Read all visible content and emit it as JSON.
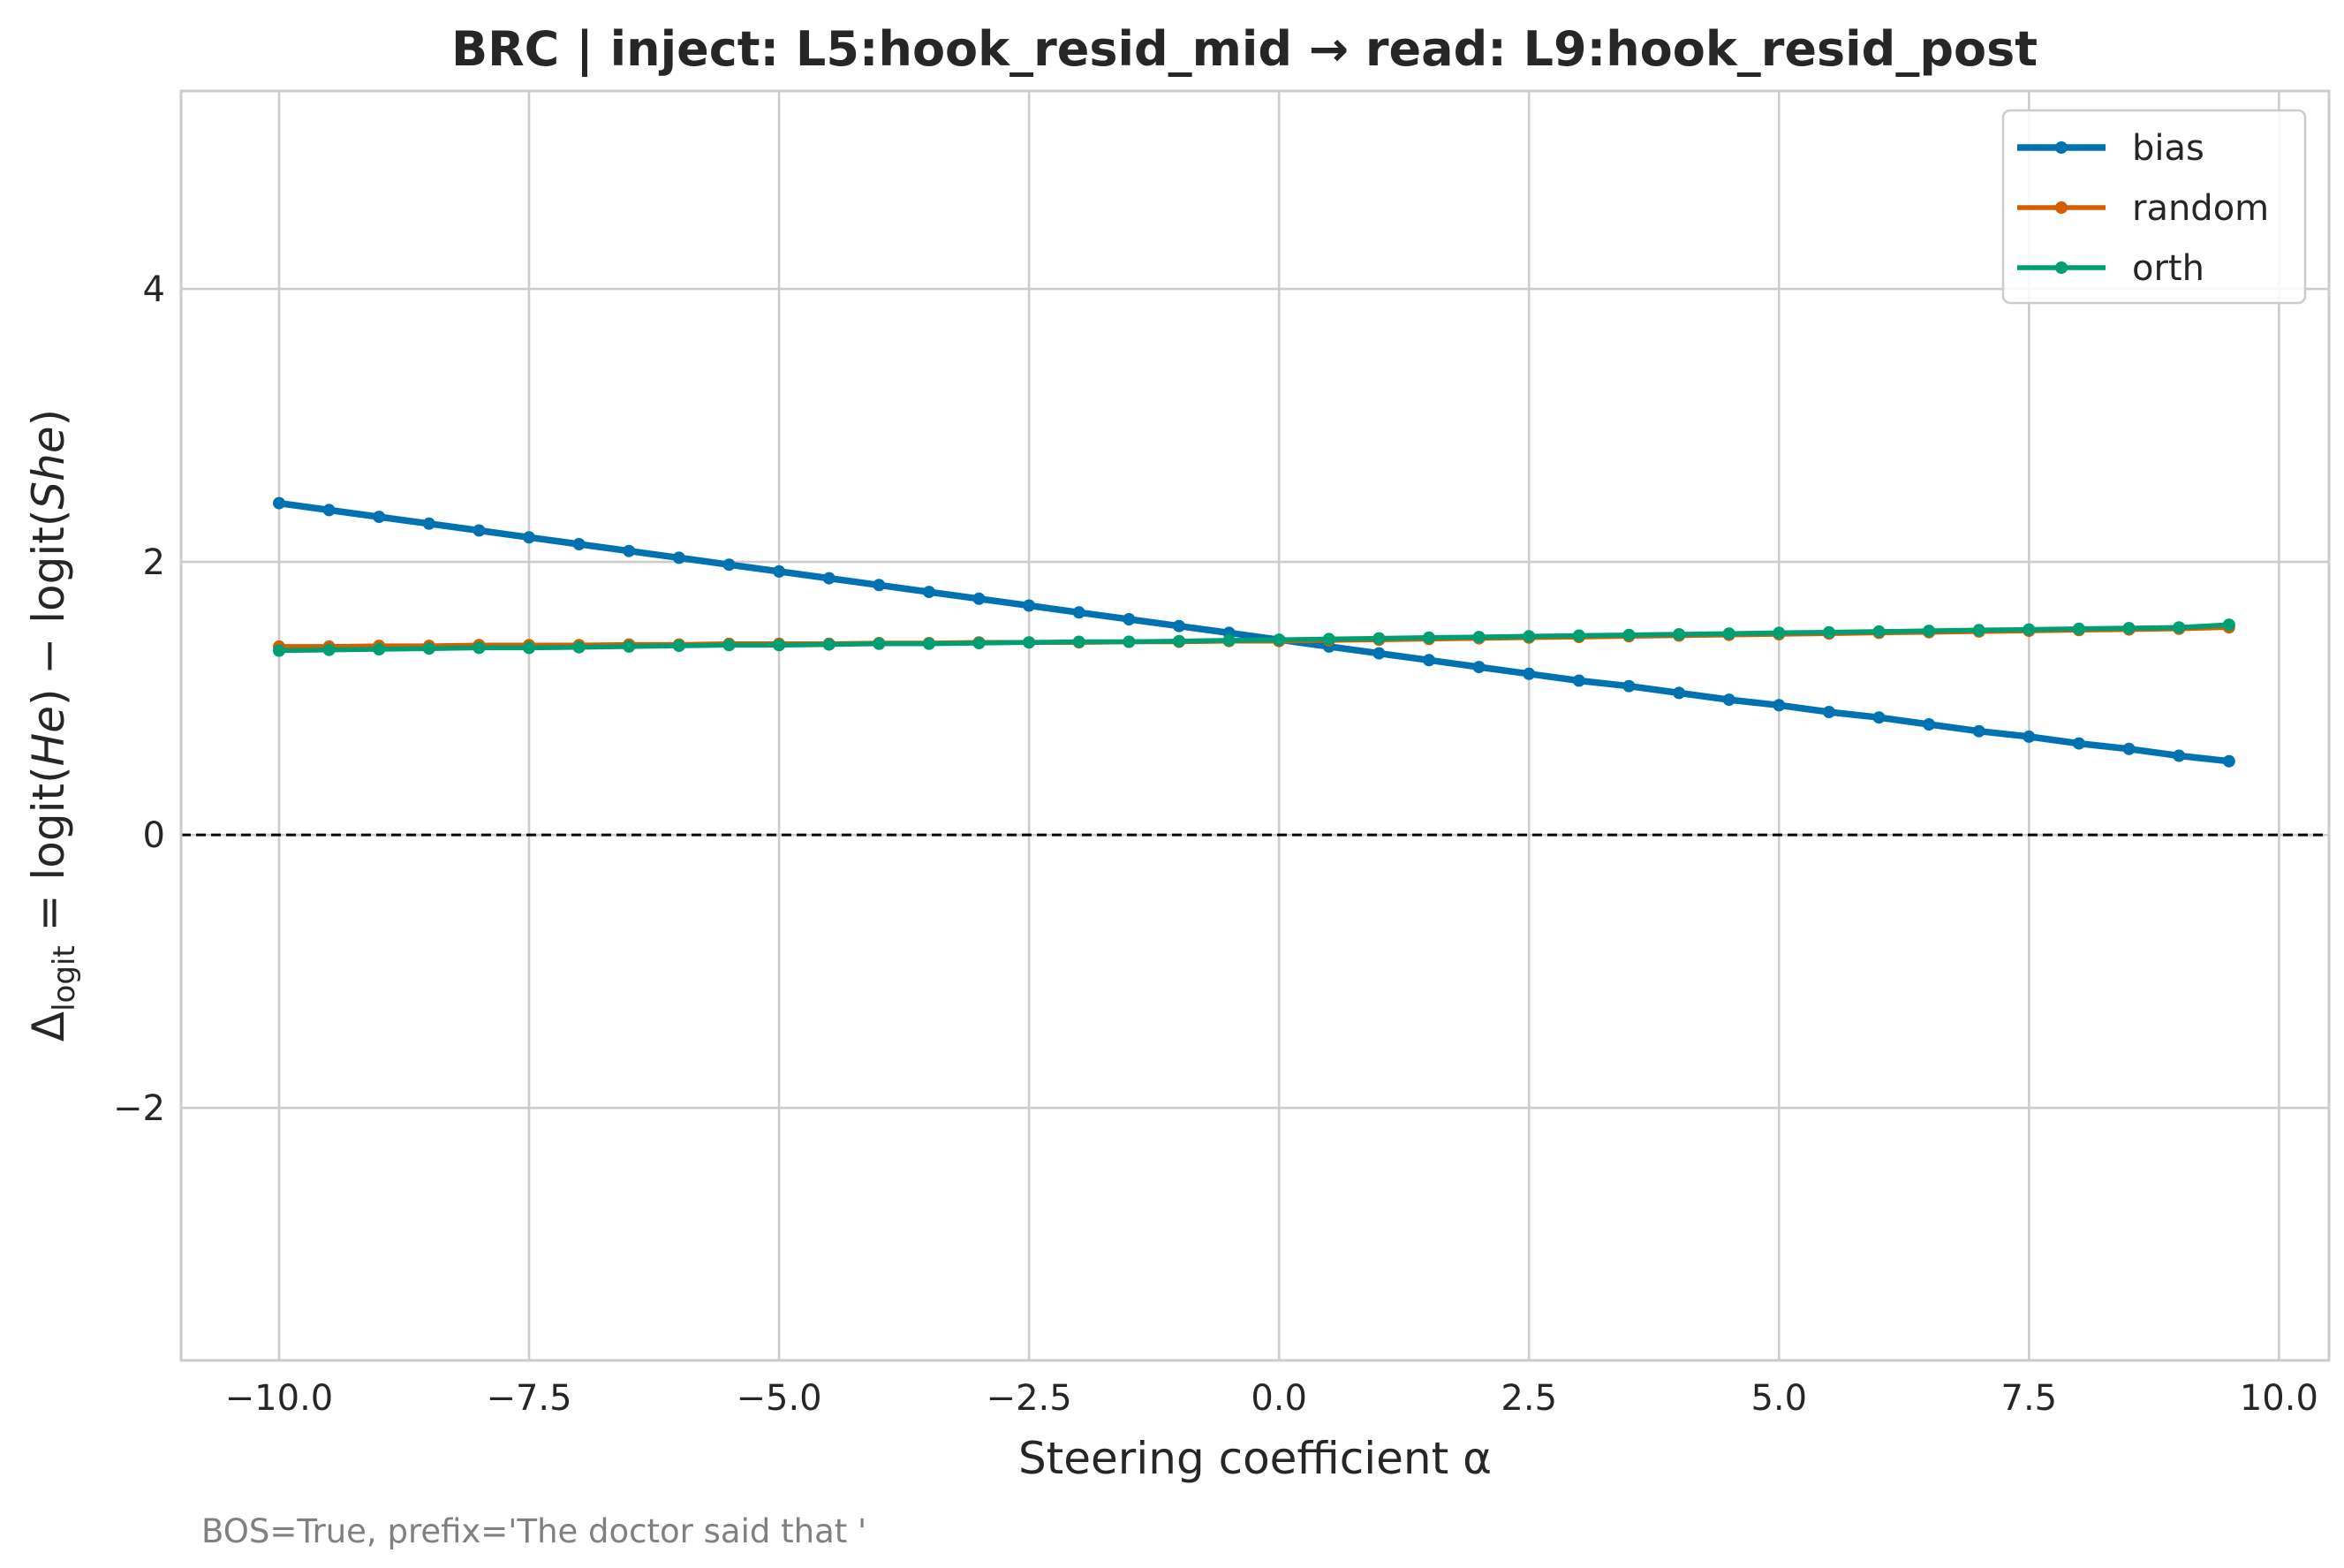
{
  "chart_data": {
    "type": "line",
    "title": "BRC | inject: L5:hook_resid_mid → read: L9:hook_resid_post",
    "xlabel": "Steering coefficient α",
    "ylabel": "Δlogit = logit(He) − logit(She)",
    "ylabel_parts": {
      "delta": "Δ",
      "sub": "logit",
      "pre": " = logit(",
      "he": "He",
      "mid": ") − logit(",
      "she": "She",
      "post": ")"
    },
    "footnote": "BOS=True, prefix='The doctor said that '",
    "xlim": [
      -10.98,
      10.5
    ],
    "ylim": [
      -3.85,
      5.45
    ],
    "x_ticks": [
      -10.0,
      -7.5,
      -5.0,
      -2.5,
      0.0,
      2.5,
      5.0,
      7.5,
      10.0
    ],
    "x_tick_labels": [
      "−10.0",
      "−7.5",
      "−5.0",
      "−2.5",
      "0.0",
      "2.5",
      "5.0",
      "7.5",
      "10.0"
    ],
    "y_ticks": [
      -2,
      0,
      2,
      4
    ],
    "y_tick_labels": [
      "−2",
      "0",
      "2",
      "4"
    ],
    "reference_line": {
      "y": 0,
      "style": "dashed",
      "color": "#000000"
    },
    "grid": true,
    "legend_position": "top-right",
    "x_start": -10.0,
    "x_step": 0.5,
    "series": [
      {
        "name": "bias",
        "color": "#0072b2",
        "values": [
          2.43,
          2.38,
          2.33,
          2.28,
          2.23,
          2.18,
          2.13,
          2.08,
          2.03,
          1.98,
          1.93,
          1.88,
          1.83,
          1.78,
          1.73,
          1.68,
          1.63,
          1.58,
          1.53,
          1.48,
          1.43,
          1.38,
          1.33,
          1.28,
          1.23,
          1.18,
          1.13,
          1.09,
          1.04,
          0.99,
          0.95,
          0.9,
          0.86,
          0.81,
          0.76,
          0.72,
          0.67,
          0.63,
          0.58,
          0.54
        ]
      },
      {
        "name": "random",
        "color": "#d55e00",
        "values": [
          1.38,
          1.38,
          1.385,
          1.385,
          1.39,
          1.39,
          1.39,
          1.395,
          1.395,
          1.4,
          1.4,
          1.4,
          1.405,
          1.405,
          1.41,
          1.41,
          1.41,
          1.415,
          1.415,
          1.42,
          1.42,
          1.425,
          1.43,
          1.435,
          1.44,
          1.445,
          1.45,
          1.455,
          1.46,
          1.465,
          1.47,
          1.475,
          1.48,
          1.485,
          1.49,
          1.495,
          1.5,
          1.505,
          1.51,
          1.52
        ]
      },
      {
        "name": "orth",
        "color": "#009e73",
        "values": [
          1.35,
          1.355,
          1.36,
          1.365,
          1.37,
          1.37,
          1.375,
          1.38,
          1.385,
          1.39,
          1.39,
          1.395,
          1.4,
          1.4,
          1.405,
          1.41,
          1.415,
          1.415,
          1.42,
          1.425,
          1.43,
          1.435,
          1.44,
          1.445,
          1.45,
          1.455,
          1.46,
          1.465,
          1.47,
          1.475,
          1.48,
          1.485,
          1.49,
          1.495,
          1.5,
          1.505,
          1.51,
          1.515,
          1.52,
          1.54
        ]
      }
    ]
  }
}
